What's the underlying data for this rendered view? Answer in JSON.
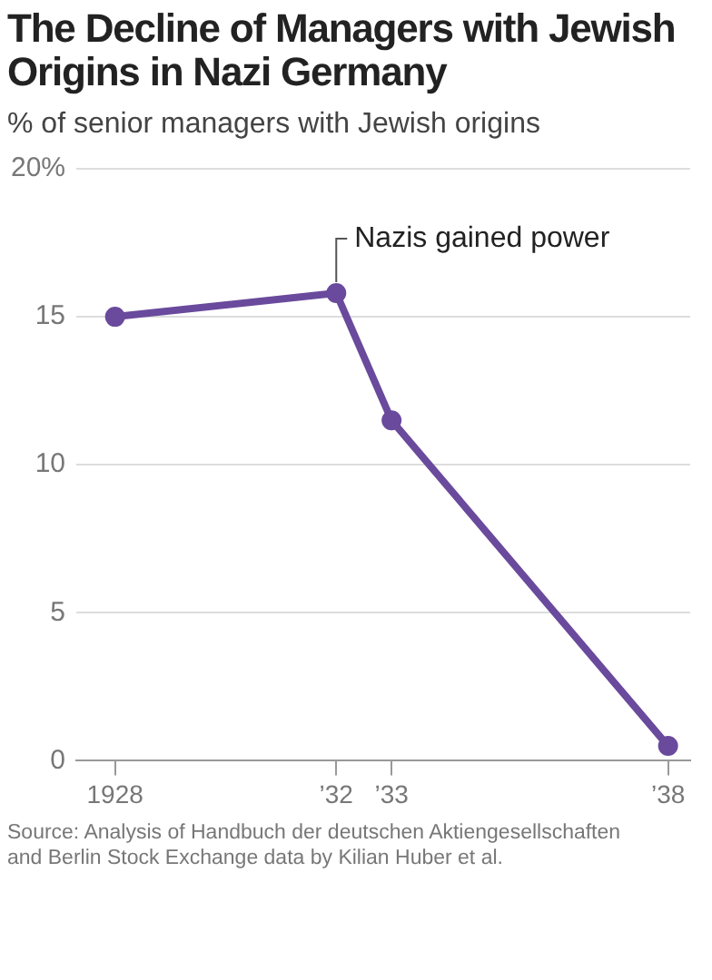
{
  "chart_data": {
    "type": "line",
    "title": "The Decline of Managers with Jewish Origins in Nazi Germany",
    "subtitle": "% of senior managers with Jewish origins",
    "x": [
      1928,
      1932,
      1933,
      1938
    ],
    "series": [
      {
        "color": "#6a4a9c",
        "values": [
          15.0,
          15.8,
          11.5,
          0.5
        ]
      }
    ],
    "xlim": [
      1927.3,
      1938.4
    ],
    "xticks": [
      {
        "value": 1928,
        "label": "1928"
      },
      {
        "value": 1932,
        "label": "’32"
      },
      {
        "value": 1933,
        "label": "’33"
      },
      {
        "value": 1938,
        "label": "’38"
      }
    ],
    "ylim": [
      0,
      20
    ],
    "yticks": [
      0,
      5,
      10,
      15,
      {
        "value": 20,
        "label": "20%"
      }
    ],
    "grid": "y",
    "marker": "circle",
    "legend": false,
    "annotations": [
      {
        "text": "Nazis gained power",
        "x": 1932,
        "y": 15.8
      },
      "Source: Analysis of Handbuch der deutschen Aktiengesellschaften and Berlin Stock Exchange data by Kilian Huber et al."
    ]
  }
}
